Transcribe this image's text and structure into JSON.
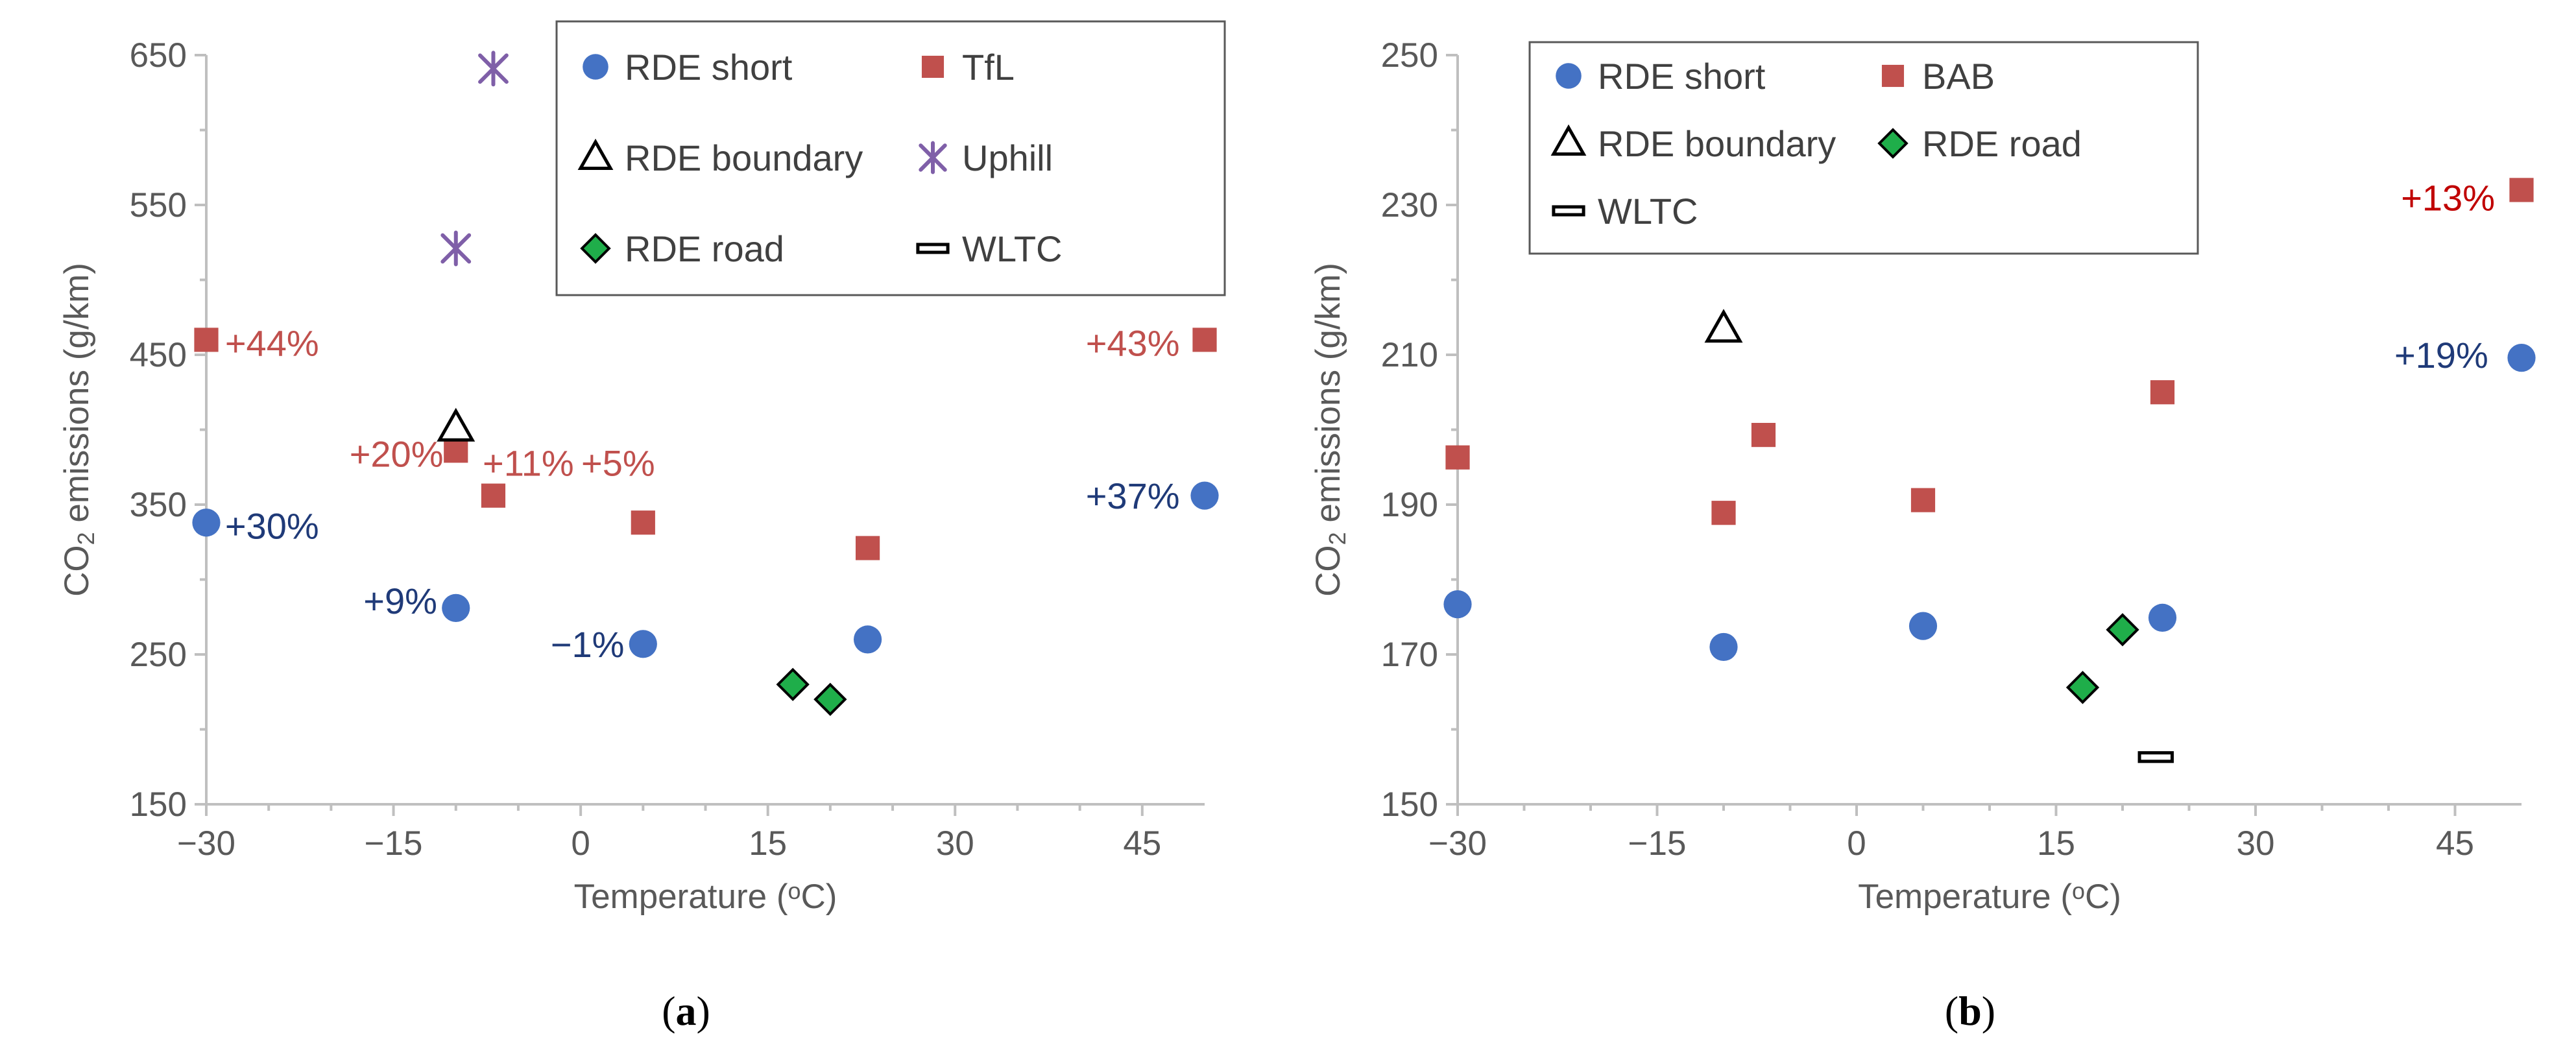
{
  "colors": {
    "rde_short": "#4472c4",
    "red_series": "#c0504d",
    "uphill": "#7f5fa8",
    "rde_road": "#1fae4a",
    "annot_blue": "#1f3a78",
    "annot_red_a": "#c0504d",
    "annot_red_b": "#c00000",
    "axis": "#bfbfbf",
    "text": "#595959"
  },
  "chart_data": [
    {
      "type": "scatter",
      "panel_label_parts": [
        "(",
        "a",
        ")"
      ],
      "xlabel_parts": [
        "Temperature (",
        "o",
        "C)"
      ],
      "ylabel_parts": [
        "CO",
        "2",
        " emissions (g/km)"
      ],
      "xlim": [
        -30,
        50
      ],
      "ylim": [
        150,
        650
      ],
      "xticks": [
        -30,
        -15,
        0,
        15,
        30,
        45
      ],
      "xtick_labels": [
        "−30",
        "−15",
        "0",
        "15",
        "30",
        "45"
      ],
      "yticks": [
        150,
        250,
        350,
        450,
        550,
        650
      ],
      "ytick_labels": [
        "150",
        "250",
        "350",
        "450",
        "550",
        "650"
      ],
      "legend_position": "top-right",
      "legend_columns": 2,
      "series": [
        {
          "name": "RDE short",
          "marker": "circle",
          "color_key": "rde_short",
          "x": [
            -30,
            -10,
            5,
            23,
            50
          ],
          "y": [
            338,
            281,
            257,
            260,
            356
          ]
        },
        {
          "name": "TfL",
          "marker": "square",
          "color_key": "red_series",
          "x": [
            -30,
            -10,
            -7,
            5,
            23,
            50
          ],
          "y": [
            460,
            386,
            356,
            338,
            321,
            460
          ]
        },
        {
          "name": "RDE boundary",
          "marker": "triangle",
          "color_key": "none",
          "x": [
            -10
          ],
          "y": [
            401
          ]
        },
        {
          "name": "Uphill",
          "marker": "asterisk",
          "color_key": "uphill",
          "x": [
            -10,
            -7
          ],
          "y": [
            521,
            641
          ]
        },
        {
          "name": "RDE road",
          "marker": "diamond",
          "color_key": "rde_road",
          "x": [
            17,
            20
          ],
          "y": [
            230,
            220
          ]
        },
        {
          "name": "WLTC",
          "marker": "dash",
          "color_key": "none",
          "x": [],
          "y": []
        }
      ],
      "annotations": [
        {
          "text": "+44%",
          "x": -28.5,
          "y": 458,
          "anchor": "start",
          "color_key": "annot_red_a"
        },
        {
          "text": "+43%",
          "x": 48,
          "y": 458,
          "anchor": "end",
          "color_key": "annot_red_a"
        },
        {
          "text": "+20%",
          "x": -11,
          "y": 384,
          "anchor": "end",
          "color_key": "annot_red_a"
        },
        {
          "text": "+11%",
          "x": -4.2,
          "y": 378,
          "anchor": "middle",
          "color_key": "annot_red_a"
        },
        {
          "text": "+5%",
          "x": 3,
          "y": 378,
          "anchor": "middle",
          "color_key": "annot_red_a"
        },
        {
          "text": "+30%",
          "x": -28.5,
          "y": 336,
          "anchor": "start",
          "color_key": "annot_blue"
        },
        {
          "text": "+37%",
          "x": 48,
          "y": 356,
          "anchor": "end",
          "color_key": "annot_blue"
        },
        {
          "text": "+9%",
          "x": -11.5,
          "y": 286,
          "anchor": "end",
          "color_key": "annot_blue"
        },
        {
          "text": "−1%",
          "x": 3.5,
          "y": 257,
          "anchor": "end",
          "color_key": "annot_blue"
        }
      ]
    },
    {
      "type": "scatter",
      "panel_label_parts": [
        "(",
        "b",
        ")"
      ],
      "xlabel_parts": [
        "Temperature (",
        "o",
        "C)"
      ],
      "ylabel_parts": [
        "CO",
        "2",
        " emissions (g/km)"
      ],
      "xlim": [
        -30,
        50
      ],
      "ylim": [
        150,
        250
      ],
      "xticks": [
        -30,
        -15,
        0,
        15,
        30,
        45
      ],
      "xtick_labels": [
        "−30",
        "−15",
        "0",
        "15",
        "30",
        "45"
      ],
      "yticks": [
        150,
        170,
        190,
        210,
        230,
        250
      ],
      "ytick_labels": [
        "150",
        "170",
        "190",
        "210",
        "230",
        "250"
      ],
      "legend_position": "top-right",
      "legend_columns": 2,
      "series": [
        {
          "name": "RDE short",
          "marker": "circle",
          "color_key": "rde_short",
          "x": [
            -30,
            -10,
            5,
            23,
            50
          ],
          "y": [
            176.7,
            171,
            173.8,
            174.9,
            209.6
          ]
        },
        {
          "name": "BAB",
          "marker": "square",
          "color_key": "red_series",
          "x": [
            -30,
            -10,
            -7,
            5,
            23,
            50
          ],
          "y": [
            196.3,
            188.9,
            199.3,
            190.6,
            205,
            232
          ]
        },
        {
          "name": "RDE boundary",
          "marker": "triangle",
          "color_key": "none",
          "x": [
            -10
          ],
          "y": [
            213.4
          ]
        },
        {
          "name": "RDE road",
          "marker": "diamond",
          "color_key": "rde_road",
          "x": [
            17,
            20
          ],
          "y": [
            165.6,
            173.3
          ]
        },
        {
          "name": "WLTC",
          "marker": "dash",
          "color_key": "none",
          "x": [
            22.5
          ],
          "y": [
            156.3
          ]
        }
      ],
      "annotations": [
        {
          "text": "+13%",
          "x": 48,
          "y": 231,
          "anchor": "end",
          "color_key": "annot_red_b"
        },
        {
          "text": "+19%",
          "x": 47.5,
          "y": 210,
          "anchor": "end",
          "color_key": "annot_blue"
        }
      ]
    }
  ]
}
